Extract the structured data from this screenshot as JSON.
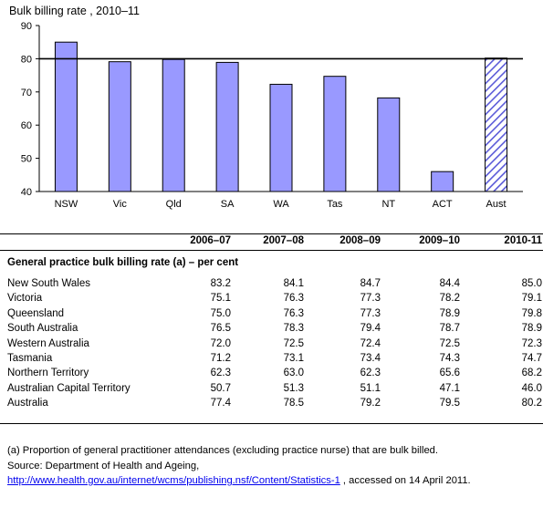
{
  "chart_data": {
    "type": "bar",
    "title": "Bulk billing rate , 2010–11",
    "categories": [
      "NSW",
      "Vic",
      "Qld",
      "SA",
      "WA",
      "Tas",
      "NT",
      "ACT",
      "Aust"
    ],
    "values": [
      85.0,
      79.1,
      79.8,
      78.9,
      72.3,
      74.7,
      68.2,
      46.0,
      80.2
    ],
    "ylim": [
      40,
      90
    ],
    "yticks": [
      40,
      50,
      60,
      70,
      80,
      90
    ],
    "reference_line": 80,
    "highlight_category": "Aust",
    "colors": {
      "bar": "#9999ff",
      "highlight_hatch": "#5a5ad8",
      "outline": "#000000"
    }
  },
  "table": {
    "columns": [
      "2006–07",
      "2007–08",
      "2008–09",
      "2009–10",
      "2010-11"
    ],
    "section_title": "General practice bulk billing rate (a) – per cent",
    "rows": [
      {
        "label": "New South Wales",
        "values": [
          "83.2",
          "84.1",
          "84.7",
          "84.4",
          "85.0"
        ]
      },
      {
        "label": "Victoria",
        "values": [
          "75.1",
          "76.3",
          "77.3",
          "78.2",
          "79.1"
        ]
      },
      {
        "label": "Queensland",
        "values": [
          "75.0",
          "76.3",
          "77.3",
          "78.9",
          "79.8"
        ]
      },
      {
        "label": "South Australia",
        "values": [
          "76.5",
          "78.3",
          "79.4",
          "78.7",
          "78.9"
        ]
      },
      {
        "label": "Western Australia",
        "values": [
          "72.0",
          "72.5",
          "72.4",
          "72.5",
          "72.3"
        ]
      },
      {
        "label": "Tasmania",
        "values": [
          "71.2",
          "73.1",
          "73.4",
          "74.3",
          "74.7"
        ]
      },
      {
        "label": "Northern Territory",
        "values": [
          "62.3",
          "63.0",
          "62.3",
          "65.6",
          "68.2"
        ]
      },
      {
        "label": "Australian Capital Territory",
        "values": [
          "50.7",
          "51.3",
          "51.1",
          "47.1",
          "46.0"
        ]
      },
      {
        "label": "Australia",
        "values": [
          "77.4",
          "78.5",
          "79.2",
          "79.5",
          "80.2"
        ]
      }
    ]
  },
  "notes": {
    "footnote": "(a) Proportion of general practitioner attendances (excluding practice nurse) that are bulk billed.",
    "source_label": "Source: Department of Health and Ageing,",
    "source_link": "http://www.health.gov.au/internet/wcms/publishing.nsf/Content/Statistics-1",
    "accessed": " , accessed on 14 April 2011."
  }
}
